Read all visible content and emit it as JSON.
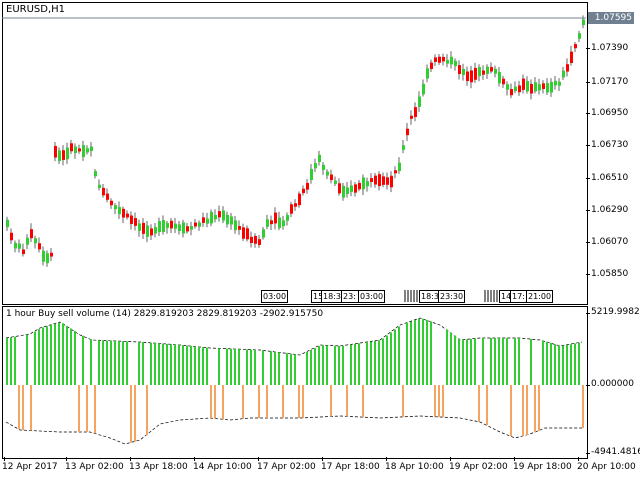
{
  "window": {
    "symbol_title": "EURUSD,H1",
    "current_price": "1.07595"
  },
  "price_axis": {
    "labels": [
      "1.07390",
      "1.07170",
      "1.06950",
      "1.06730",
      "1.06510",
      "1.06290",
      "1.06070",
      "1.05850"
    ]
  },
  "indicator": {
    "title": "1 hour Buy sell volume (14) 2829.819203 2829.819203 -2902.915750",
    "axis_labels": [
      "5219.99822",
      "0.000000",
      "-4941.48160"
    ],
    "colors": {
      "buy": "#32cd32",
      "sell": "#f4a460",
      "dashed": "#000000"
    }
  },
  "time_axis": {
    "labels": [
      "12 Apr 2017",
      "13 Apr 02:00",
      "13 Apr 18:00",
      "14 Apr 10:00",
      "17 Apr 02:00",
      "17 Apr 18:00",
      "18 Apr 10:00",
      "19 Apr 02:00",
      "19 Apr 18:00",
      "20 Apr 10:00"
    ]
  },
  "session_markers": {
    "labels": [
      "03:00",
      "15",
      "18:3",
      "23:",
      "03:00",
      "18:3",
      "23:30",
      "14",
      "17:",
      "21:00"
    ]
  },
  "colors": {
    "bull": "#32cd32",
    "bear": "#ff0000",
    "wick": "#000000"
  }
}
